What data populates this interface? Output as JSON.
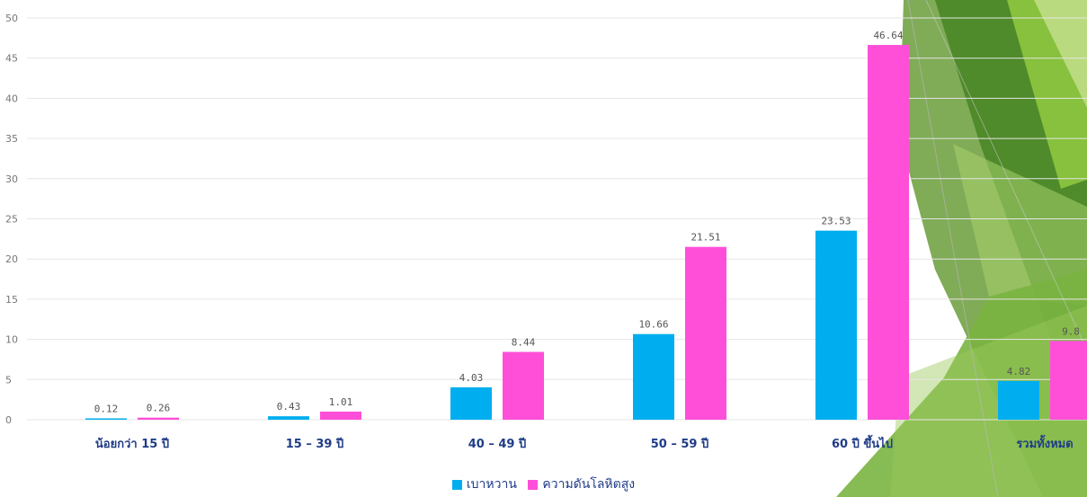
{
  "colors": {
    "diabetes": "#00aeef",
    "hypertension": "#ff4fd8",
    "grid": "#e6e6e6"
  },
  "chart_data": {
    "type": "bar",
    "categories": [
      "น้อยกว่า 15 ปี",
      "15 – 39 ปี",
      "40 – 49 ปี",
      "50 – 59 ปี",
      "60 ปี ขึ้นไป",
      "รวมทั้งหมด"
    ],
    "series": [
      {
        "name": "เบาหวาน",
        "values": [
          0.12,
          0.43,
          4.03,
          10.66,
          23.53,
          4.82
        ]
      },
      {
        "name": "ความดันโลหิตสูง",
        "values": [
          0.26,
          1.01,
          8.44,
          21.51,
          46.64,
          9.8
        ]
      }
    ],
    "data_labels": {
      "diabetes": [
        "0.12",
        "0.43",
        "4.03",
        "10.66",
        "23.53",
        "4.82"
      ],
      "hypertension": [
        "0.26",
        "1.01",
        "8.44",
        "21.51",
        "46.64",
        "9.8"
      ]
    },
    "yticks": [
      "0",
      "5",
      "10",
      "15",
      "20",
      "25",
      "30",
      "35",
      "40",
      "45",
      "50"
    ],
    "ylim": [
      0,
      50
    ],
    "grid": true,
    "legend_position": "bottom"
  }
}
